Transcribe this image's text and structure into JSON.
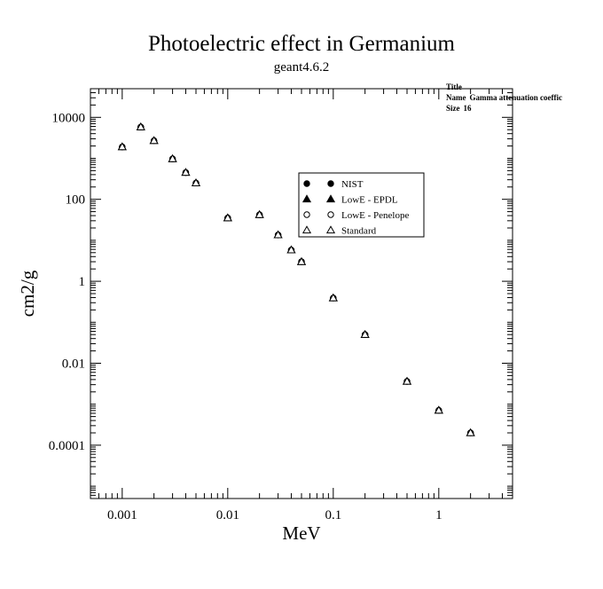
{
  "chart_data": {
    "type": "scatter",
    "title": "Photoelectric effect in Germanium",
    "subtitle": "geant4.6.2",
    "xlabel": "MeV",
    "ylabel": "cm2/g",
    "xscale": "log",
    "yscale": "log",
    "xlim": [
      0.0005,
      5
    ],
    "ylim": [
      5e-06,
      50000
    ],
    "xticks": [
      {
        "value": 0.001,
        "label": "0.001"
      },
      {
        "value": 0.01,
        "label": "0.01"
      },
      {
        "value": 0.1,
        "label": "0.1"
      },
      {
        "value": 1,
        "label": "1"
      }
    ],
    "yticks": [
      {
        "value": 10000,
        "label": "10000"
      },
      {
        "value": 100,
        "label": "100"
      },
      {
        "value": 1,
        "label": "1"
      },
      {
        "value": 0.01,
        "label": "0.01"
      },
      {
        "value": 0.0001,
        "label": "0.0001"
      }
    ],
    "grid": false,
    "legend_position": "upper-center",
    "x": [
      0.001,
      0.0015,
      0.002,
      0.003,
      0.004,
      0.005,
      0.01,
      0.02,
      0.03,
      0.04,
      0.05,
      0.1,
      0.2,
      0.5,
      1,
      2
    ],
    "series": [
      {
        "name": "NIST",
        "marker": "filled-circle",
        "values": [
          1900,
          5800,
          2700,
          970,
          450,
          250,
          35,
          42,
          13.5,
          5.8,
          3.0,
          0.39,
          0.05,
          0.0036,
          0.00071,
          0.0002
        ]
      },
      {
        "name": "LowE - EPDL",
        "marker": "filled-triangle",
        "values": [
          1900,
          5800,
          2700,
          970,
          450,
          250,
          35,
          42,
          13.5,
          5.8,
          3.0,
          0.39,
          0.05,
          0.0036,
          0.00071,
          0.0002
        ]
      },
      {
        "name": "LowE - Penelope",
        "marker": "open-circle",
        "values": [
          1900,
          5800,
          2700,
          970,
          450,
          250,
          35,
          42,
          13.5,
          5.8,
          3.0,
          0.39,
          0.05,
          0.0036,
          0.00071,
          0.0002
        ]
      },
      {
        "name": "Standard",
        "marker": "open-triangle",
        "values": [
          1900,
          5800,
          2700,
          970,
          450,
          250,
          35,
          42,
          13.5,
          5.8,
          3.0,
          0.39,
          0.05,
          0.0036,
          0.00071,
          0.0002
        ]
      }
    ]
  },
  "stats_box": {
    "title_label": "Title",
    "name_label": "Name",
    "name_value": "Gamma attenuation coeffic",
    "size_label": "Size",
    "size_value": "16"
  }
}
